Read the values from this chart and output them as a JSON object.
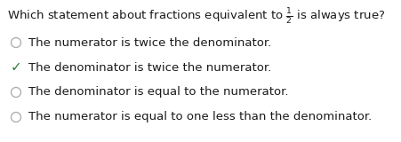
{
  "full_title": "Which statement about fractions equivalent to $\\frac{1}{2}$ is always true?",
  "options": [
    {
      "text": "The numerator is twice the denominator.",
      "correct": false
    },
    {
      "text": "The denominator is twice the numerator.",
      "correct": true
    },
    {
      "text": "The denominator is equal to the numerator.",
      "correct": false
    },
    {
      "text": "The numerator is equal to one less than the denominator.",
      "correct": false
    }
  ],
  "bg_color": "#ffffff",
  "text_color": "#1a1a1a",
  "circle_color": "#b0b0b0",
  "check_color": "#2e7d32",
  "title_fontsize": 9.5,
  "option_fontsize": 9.5
}
